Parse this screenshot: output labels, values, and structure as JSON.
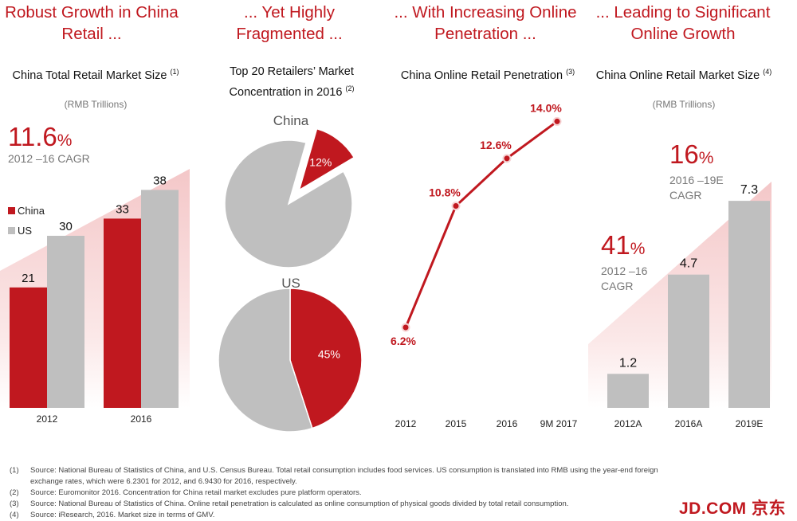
{
  "headlines": [
    "Robust Growth in China Retail ...",
    "... Yet Highly Fragmented ...",
    "... With Increasing Online Penetration ...",
    "... Leading to Significant Online Growth"
  ],
  "panel1": {
    "title": "China Total Retail Market Size",
    "note": "(1)",
    "units": "(RMB Trillions)",
    "cagr_value": "11.6",
    "cagr_pct": "%",
    "cagr_label": "2012 –16 CAGR"
  },
  "panel2": {
    "title": "Top 20 Retailers’ Market Concentration in 2016",
    "note": "(2)",
    "china_label": "China",
    "us_label": "US"
  },
  "panel3": {
    "title": "China Online Retail Penetration",
    "note": "(3)"
  },
  "panel4": {
    "title": "China Online Retail Market Size",
    "note": "(4)",
    "units": "(RMB Trillions)",
    "cagr1_value": "41",
    "cagr1_pct": "%",
    "cagr1_label": "2012 –16 CAGR",
    "cagr2_value": "16",
    "cagr2_pct": "%",
    "cagr2_label": "2016 –19E CAGR"
  },
  "colors": {
    "red": "#c0181f",
    "grey": "#bfbfbf",
    "pink": "#f4c7c8"
  },
  "chart_data": [
    {
      "type": "bar",
      "categories": [
        "2012",
        "2016"
      ],
      "series": [
        {
          "name": "China",
          "values": [
            21,
            33
          ],
          "color": "#c0181f"
        },
        {
          "name": "US",
          "values": [
            30,
            38
          ],
          "color": "#bfbfbf"
        }
      ],
      "title": "China Total Retail Market Size",
      "ylim": [
        0,
        50
      ]
    },
    {
      "type": "pie",
      "title": "Top 20 Retailers’ Market Concentration in 2016",
      "pies": [
        {
          "name": "China",
          "slices": [
            {
              "label": "12%",
              "value": 12
            },
            {
              "label": "",
              "value": 88
            }
          ]
        },
        {
          "name": "US",
          "slices": [
            {
              "label": "45%",
              "value": 45
            },
            {
              "label": "",
              "value": 55
            }
          ]
        }
      ]
    },
    {
      "type": "line",
      "title": "China Online Retail Penetration",
      "x": [
        "2012",
        "2015",
        "2016",
        "9M 2017"
      ],
      "series": [
        {
          "values": [
            6.2,
            10.8,
            12.6,
            14.0
          ],
          "labels": [
            "6.2%",
            "10.8%",
            "12.6%",
            "14.0%"
          ]
        }
      ]
    },
    {
      "type": "bar",
      "title": "China Online Retail Market Size",
      "categories": [
        "2012A",
        "2016A",
        "2019E"
      ],
      "values": [
        1.2,
        4.7,
        7.3
      ],
      "labels": [
        "1.2",
        "4.7",
        "7.3"
      ],
      "ylim": [
        0,
        10
      ]
    }
  ],
  "footnotes": [
    {
      "num": "(1)",
      "text": "Source: National Bureau of Statistics of China, and U.S. Census Bureau. Total retail consumption includes food services. US consumption is translated into RMB using the year-end foreign exchange rates, which were 6.2301 for 2012, and 6.9430 for 2016, respectively."
    },
    {
      "num": "(2)",
      "text": "Source: Euromonitor 2016. Concentration for China retail market excludes pure platform operators."
    },
    {
      "num": "(3)",
      "text": "Source: National Bureau of Statistics of China. Online retail penetration is calculated as online consumption of physical goods divided by total retail consumption."
    },
    {
      "num": "(4)",
      "text": "Source: iResearch, 2016. Market size in terms of GMV."
    }
  ],
  "logo": "JD.COM 京东"
}
